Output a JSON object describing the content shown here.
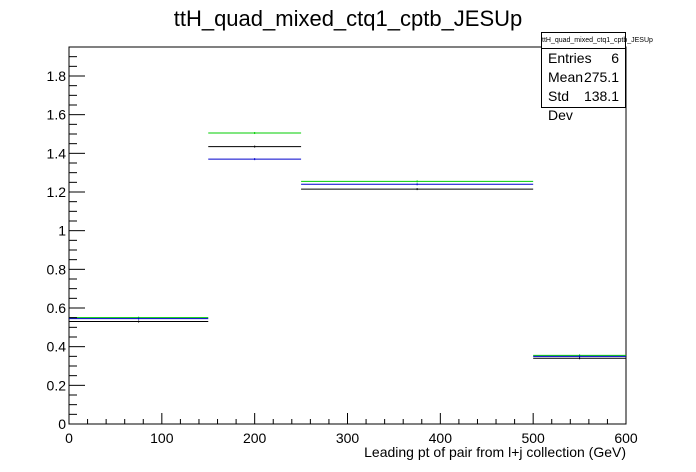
{
  "chart_data": {
    "type": "step",
    "title": "ttH_quad_mixed_ctq1_cptb_JESUp",
    "xlabel": "Leading pt of pair from l+j collection (GeV)",
    "ylabel": "",
    "xlim": [
      0,
      600
    ],
    "ylim": [
      0,
      1.95
    ],
    "xticks": [
      0,
      100,
      200,
      300,
      400,
      500,
      600
    ],
    "yticks": [
      0,
      0.2,
      0.4,
      0.6,
      0.8,
      1,
      1.2,
      1.4,
      1.6,
      1.8
    ],
    "ytick_labels": [
      "0",
      "0.2",
      "0.4",
      "0.6",
      "0.8",
      "1",
      "1.2",
      "1.4",
      "1.6",
      "1.8"
    ],
    "bin_edges": [
      0,
      150,
      250,
      500,
      600
    ],
    "series": [
      {
        "color": "#00cc00",
        "values": [
          0.55,
          1.505,
          1.255,
          0.355
        ]
      },
      {
        "color": "#000000",
        "values": [
          0.53,
          1.435,
          1.215,
          0.34
        ]
      },
      {
        "color": "#0000cc",
        "values": [
          0.545,
          1.37,
          1.24,
          0.35
        ]
      }
    ],
    "grid": false
  },
  "stats": {
    "title": "ttH_quad_mixed_ctq1_cptb_JESUp",
    "rows": [
      {
        "label": "Entries",
        "value": "6"
      },
      {
        "label": "Mean",
        "value": "275.1"
      },
      {
        "label": "Std Dev",
        "value": "138.1"
      }
    ]
  }
}
